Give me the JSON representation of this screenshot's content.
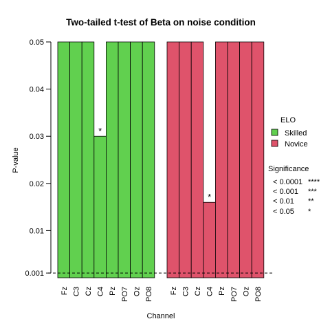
{
  "chart_data": {
    "type": "bar",
    "title": "Two-tailed t-test of Beta on noise condition",
    "xlabel": "Channel",
    "ylabel": "P-value",
    "ylim": [
      0,
      0.05
    ],
    "y_ticks": [
      0.001,
      0.01,
      0.02,
      0.03,
      0.04,
      0.05
    ],
    "y_tick_labels": [
      "0.001",
      "0.01",
      "0.02",
      "0.03",
      "0.04",
      "0.05"
    ],
    "reference_line": {
      "y": 0.001,
      "style": "dashed"
    },
    "legend_position": "right",
    "groups": [
      {
        "name": "Skilled",
        "color": "#61D04F",
        "categories": [
          "Fz",
          "C3",
          "Cz",
          "C4",
          "Pz",
          "PO7",
          "Oz",
          "PO8"
        ],
        "values": [
          0.05,
          0.05,
          0.05,
          0.03,
          0.05,
          0.05,
          0.05,
          0.05
        ],
        "stars": [
          "",
          "",
          "",
          "*",
          "",
          "",
          "",
          ""
        ]
      },
      {
        "name": "Novice",
        "color": "#DF536B",
        "categories": [
          "Fz",
          "C3",
          "Cz",
          "C4",
          "Pz",
          "PO7",
          "Oz",
          "PO8"
        ],
        "values": [
          0.05,
          0.05,
          0.05,
          0.016,
          0.05,
          0.05,
          0.05,
          0.05
        ],
        "stars": [
          "",
          "",
          "",
          "*",
          "",
          "",
          "",
          ""
        ]
      }
    ],
    "legend": {
      "title": "ELO",
      "items": [
        {
          "label": "Skilled",
          "color": "#61D04F"
        },
        {
          "label": "Novice",
          "color": "#DF536B"
        }
      ]
    },
    "significance": {
      "title": "Significance",
      "rows": [
        {
          "threshold": "< 0.0001",
          "stars": "****"
        },
        {
          "threshold": "< 0.001",
          "stars": "***"
        },
        {
          "threshold": "< 0.01",
          "stars": "**"
        },
        {
          "threshold": "< 0.05",
          "stars": "*"
        }
      ]
    }
  }
}
